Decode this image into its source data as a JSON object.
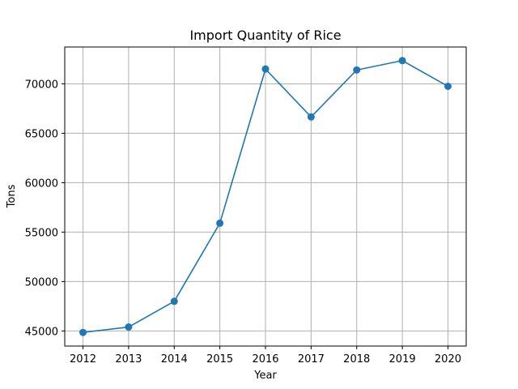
{
  "chart_data": {
    "type": "line",
    "title": "Import Quantity of Rice",
    "xlabel": "Year",
    "ylabel": "Tons",
    "x": [
      2012,
      2013,
      2014,
      2015,
      2016,
      2017,
      2018,
      2019,
      2020
    ],
    "series": [
      {
        "values": [
          44850,
          45400,
          48000,
          55900,
          71500,
          66650,
          71400,
          72350,
          69750
        ],
        "color": "#1f77b4",
        "marker": "circle"
      }
    ],
    "xticks": [
      "2012",
      "2013",
      "2014",
      "2015",
      "2016",
      "2017",
      "2018",
      "2019",
      "2020"
    ],
    "yticks": [
      45000,
      50000,
      55000,
      60000,
      65000,
      70000
    ],
    "ytick_labels": [
      "45000",
      "50000",
      "55000",
      "60000",
      "65000",
      "70000"
    ],
    "xlim": [
      2011.6,
      2020.4
    ],
    "ylim": [
      43475,
      73725
    ],
    "grid": true,
    "grid_color": "#b0b0b0",
    "axis_color": "#000000"
  }
}
